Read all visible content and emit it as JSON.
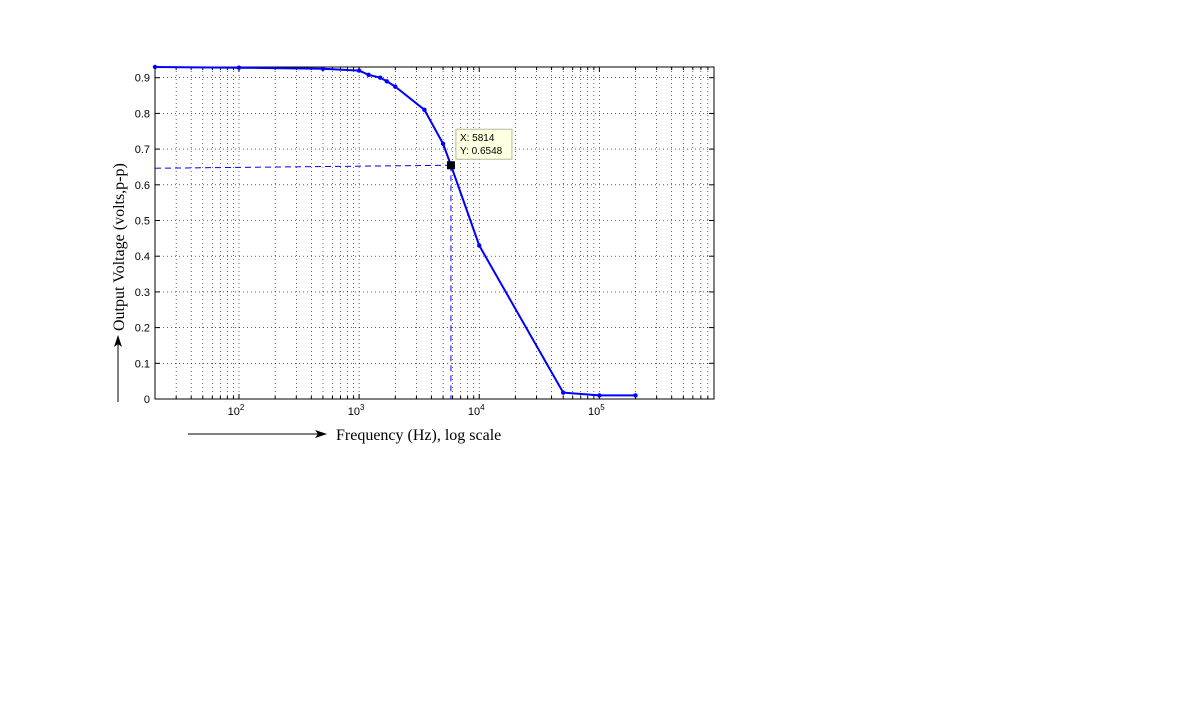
{
  "chart_data": {
    "type": "line",
    "xlabel": "Frequency (Hz), log scale",
    "ylabel": "Output Voltage (volts,p-p)",
    "x_scale": "log",
    "xlim": [
      20,
      900000
    ],
    "ylim": [
      0,
      0.93
    ],
    "grid": true,
    "line_color": "#0000ff",
    "y_ticks": [
      "0",
      "0.1",
      "0.2",
      "0.3",
      "0.4",
      "0.5",
      "0.6",
      "0.7",
      "0.8",
      "0.9"
    ],
    "y_tick_values": [
      0,
      0.1,
      0.2,
      0.3,
      0.4,
      0.5,
      0.6,
      0.7,
      0.8,
      0.9
    ],
    "x_ticks": [
      {
        "base": "10",
        "exp": "2",
        "value": 100
      },
      {
        "base": "10",
        "exp": "3",
        "value": 1000
      },
      {
        "base": "10",
        "exp": "4",
        "value": 10000
      },
      {
        "base": "10",
        "exp": "5",
        "value": 100000
      }
    ],
    "series": [
      {
        "x": [
          20,
          100,
          500,
          1000,
          1200,
          1500,
          1700,
          2000,
          3500,
          5000,
          5814,
          10000,
          50000,
          100000,
          200000
        ],
        "y": [
          0.93,
          0.928,
          0.925,
          0.92,
          0.908,
          0.9,
          0.89,
          0.875,
          0.81,
          0.715,
          0.6548,
          0.43,
          0.018,
          0.01,
          0.01
        ]
      }
    ],
    "datatip": {
      "x": 5814,
      "y": 0.6548,
      "x_text": "X: 5814",
      "y_text": "Y: 0.6548"
    }
  }
}
